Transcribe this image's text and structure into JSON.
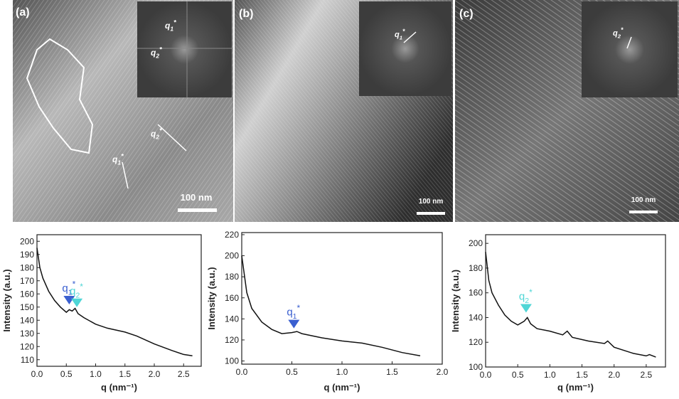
{
  "images": [
    {
      "label": "(a)",
      "scale": "100 nm",
      "insets": [
        {
          "text": "q",
          "sub": "1",
          "sup": "*"
        },
        {
          "text": "q",
          "sub": "2",
          "sup": "*"
        }
      ],
      "arrows": [
        {
          "text": "q",
          "sub": "2",
          "sup": "*"
        },
        {
          "text": "q",
          "sub": "1",
          "sup": "*"
        }
      ]
    },
    {
      "label": "(b)",
      "scale": "100 nm",
      "insets": [
        {
          "text": "q",
          "sub": "1",
          "sup": "*"
        }
      ]
    },
    {
      "label": "(c)",
      "scale": "100 nm",
      "insets": [
        {
          "text": "q",
          "sub": "2",
          "sup": "*"
        }
      ]
    }
  ],
  "chart_data": [
    {
      "type": "line",
      "xlabel": "q (nm⁻¹)",
      "ylabel": "Intensity (a.u.)",
      "xlim": [
        0,
        2.8
      ],
      "ylim": [
        105,
        205
      ],
      "xticks": [
        {
          "value": 0,
          "label": "0.0"
        },
        {
          "value": 0.5,
          "label": "0.5"
        },
        {
          "value": 1,
          "label": "1.0"
        },
        {
          "value": 1.5,
          "label": "1.5"
        },
        {
          "value": 2,
          "label": "2.0"
        },
        {
          "value": 2.5,
          "label": "2.5"
        }
      ],
      "yticks": [
        110,
        120,
        130,
        140,
        150,
        160,
        170,
        180,
        190,
        200
      ],
      "series": [
        {
          "color": "#111111",
          "x": [
            0,
            0.05,
            0.1,
            0.2,
            0.3,
            0.4,
            0.5,
            0.55,
            0.6,
            0.65,
            0.7,
            0.8,
            1.0,
            1.2,
            1.5,
            1.7,
            2.0,
            2.3,
            2.5,
            2.65
          ],
          "values": [
            195,
            180,
            172,
            162,
            155,
            150,
            146,
            148,
            147,
            149,
            145,
            142,
            137,
            134,
            131,
            128,
            122,
            117,
            114,
            113
          ]
        }
      ],
      "annotations": [
        {
          "text": "q",
          "sub": "1",
          "sup": "*",
          "color": "#3a5fd0",
          "x": 0.55,
          "y": 152
        },
        {
          "text": "q",
          "sub": "2",
          "sup": "*",
          "color": "#4fd6d6",
          "x": 0.68,
          "y": 150
        }
      ]
    },
    {
      "type": "line",
      "xlabel": "q (nm⁻¹)",
      "ylabel": "Intensity (a.u.)",
      "xlim": [
        0,
        2.0
      ],
      "ylim": [
        97,
        222
      ],
      "xticks": [
        {
          "value": 0,
          "label": "0.0"
        },
        {
          "value": 0.5,
          "label": "0.5"
        },
        {
          "value": 1,
          "label": "1.0"
        },
        {
          "value": 1.5,
          "label": "1.5"
        },
        {
          "value": 2,
          "label": "2.0"
        }
      ],
      "yticks": [
        100,
        120,
        140,
        160,
        180,
        200,
        220
      ],
      "series": [
        {
          "color": "#111111",
          "x": [
            0,
            0.05,
            0.1,
            0.2,
            0.3,
            0.4,
            0.5,
            0.55,
            0.6,
            0.8,
            1.0,
            1.2,
            1.4,
            1.6,
            1.78
          ],
          "values": [
            200,
            165,
            150,
            137,
            130,
            126,
            127,
            128,
            126,
            122,
            119,
            117,
            113,
            108,
            105
          ]
        }
      ],
      "annotations": [
        {
          "text": "q",
          "sub": "1",
          "sup": "*",
          "color": "#3a5fd0",
          "x": 0.52,
          "y": 131
        }
      ]
    },
    {
      "type": "line",
      "xlabel": "q (nm⁻¹)",
      "ylabel": "Intensity (a.u.)",
      "xlim": [
        0,
        2.8
      ],
      "ylim": [
        100,
        207
      ],
      "xticks": [
        {
          "value": 0,
          "label": "0.0"
        },
        {
          "value": 0.5,
          "label": "0.5"
        },
        {
          "value": 1,
          "label": "1.0"
        },
        {
          "value": 1.5,
          "label": "1.5"
        },
        {
          "value": 2,
          "label": "2.0"
        },
        {
          "value": 2.5,
          "label": "2.5"
        }
      ],
      "yticks": [
        100,
        120,
        140,
        160,
        180,
        200
      ],
      "series": [
        {
          "color": "#111111",
          "x": [
            0,
            0.05,
            0.1,
            0.2,
            0.3,
            0.4,
            0.5,
            0.6,
            0.65,
            0.7,
            0.8,
            1.0,
            1.2,
            1.27,
            1.35,
            1.6,
            1.85,
            1.9,
            2.0,
            2.3,
            2.5,
            2.55,
            2.65
          ],
          "values": [
            193,
            170,
            160,
            150,
            142,
            137,
            134,
            137,
            140,
            135,
            131,
            129,
            126,
            129,
            124,
            121,
            119,
            121,
            116,
            111,
            109,
            110,
            108
          ]
        }
      ],
      "annotations": [
        {
          "text": "q",
          "sub": "2",
          "sup": "*",
          "color": "#4fd6d6",
          "x": 0.63,
          "y": 144
        }
      ]
    }
  ]
}
